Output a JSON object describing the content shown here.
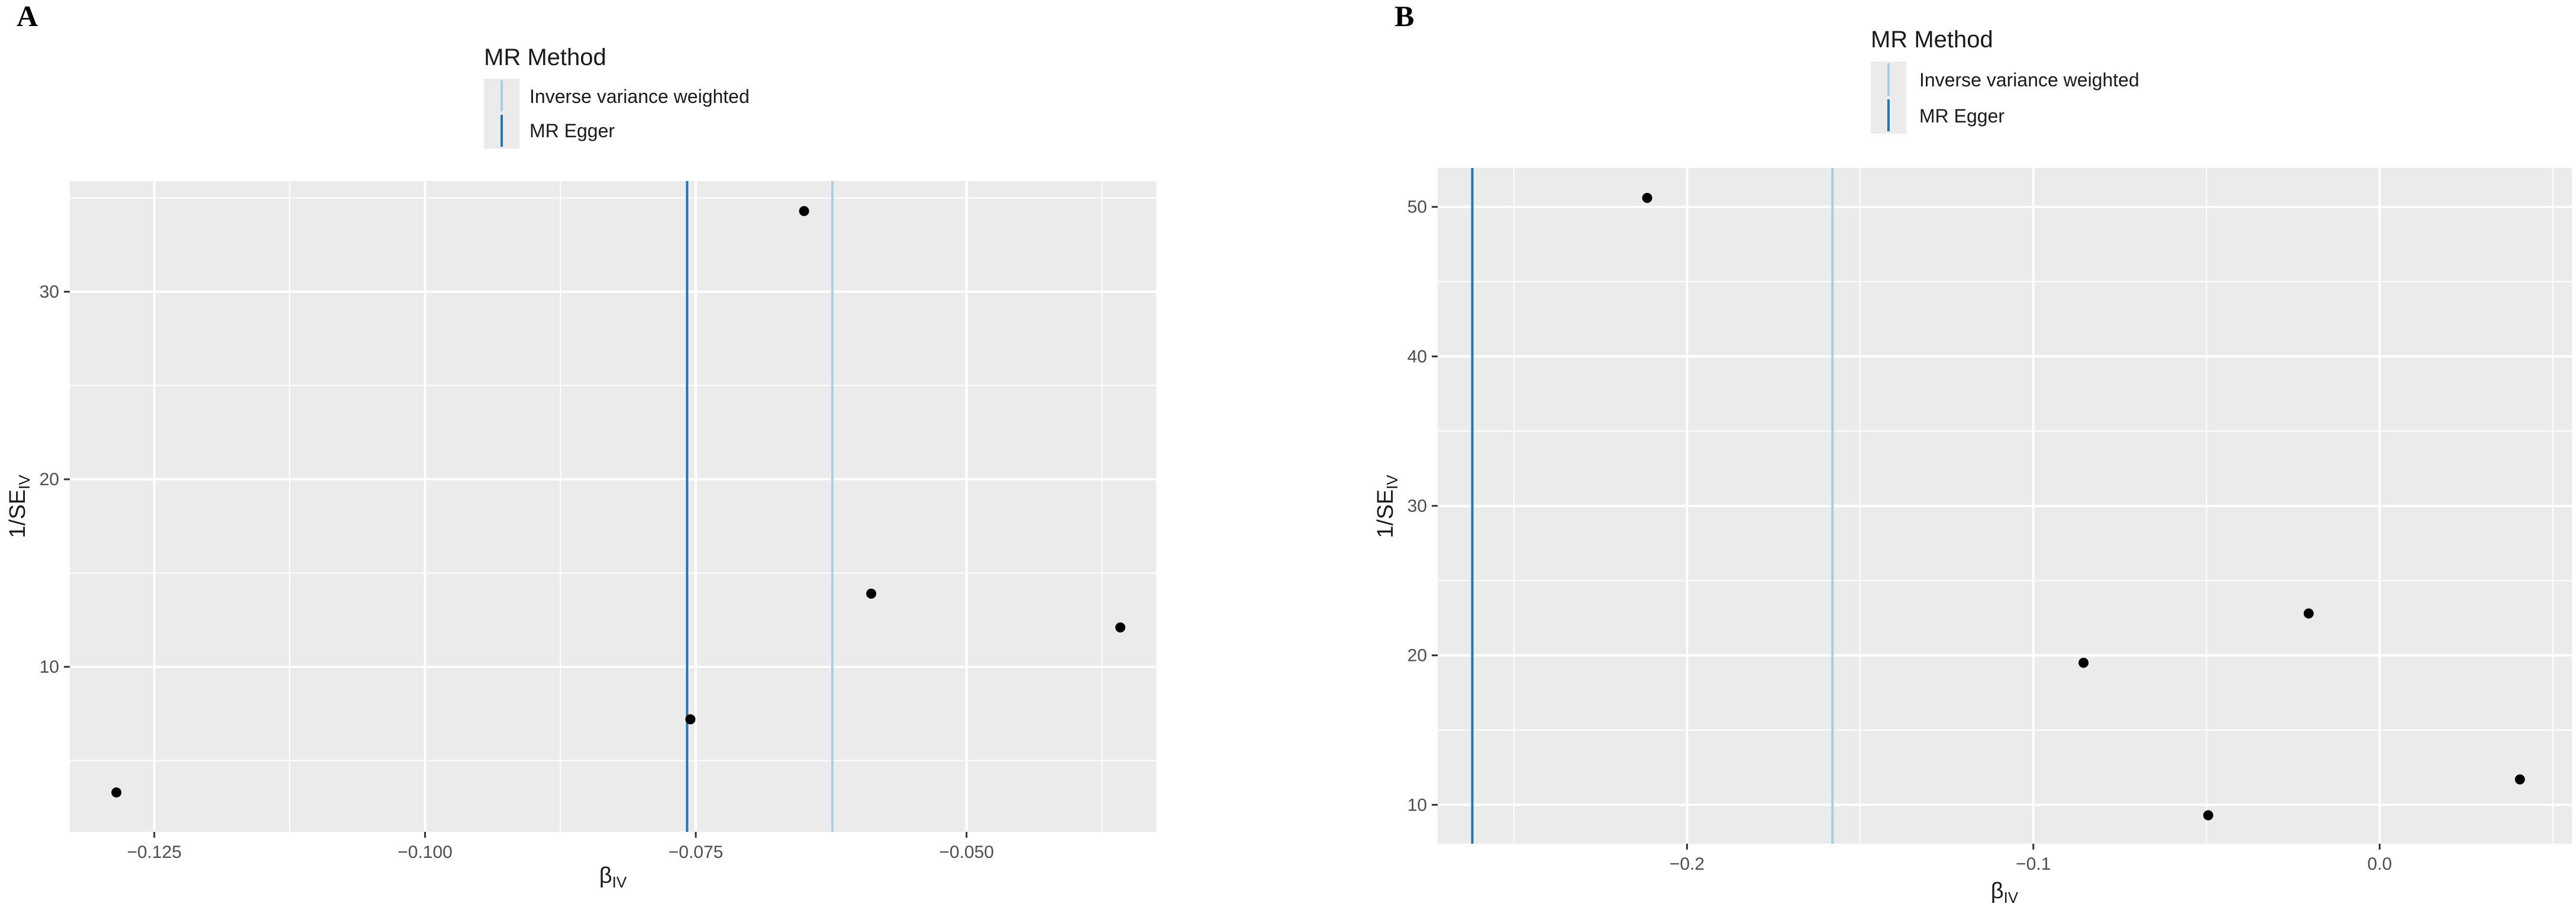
{
  "chart_data": [
    {
      "panel": "A",
      "type": "scatter",
      "title": "",
      "xlabel": "β",
      "xlabel_sub": "IV",
      "ylabel": "1/SE",
      "ylabel_sub": "IV",
      "xlim": [
        -0.1328,
        -0.0325
      ],
      "ylim": [
        1.2,
        35.9
      ],
      "x_ticks": [
        -0.125,
        -0.1,
        -0.075,
        -0.05
      ],
      "x_tick_labels": [
        "−0.125",
        "−0.100",
        "−0.075",
        "−0.050"
      ],
      "y_ticks": [
        10,
        20,
        30
      ],
      "y_tick_labels": [
        "10",
        "20",
        "30"
      ],
      "grid": true,
      "legend": {
        "title": "MR Method",
        "placement": "top",
        "entries": [
          {
            "label": "Inverse variance weighted",
            "color": "#a6cee3"
          },
          {
            "label": "MR Egger",
            "color": "#1f78b4"
          }
        ]
      },
      "points": [
        {
          "x": -0.1285,
          "y": 3.3
        },
        {
          "x": -0.0755,
          "y": 7.2
        },
        {
          "x": -0.065,
          "y": 34.3
        },
        {
          "x": -0.0588,
          "y": 13.9
        },
        {
          "x": -0.0358,
          "y": 12.1
        }
      ],
      "vlines": [
        {
          "method": "MR Egger",
          "x": -0.0758,
          "color": "#1f78b4"
        },
        {
          "method": "Inverse variance weighted",
          "x": -0.0624,
          "color": "#a6cee3"
        }
      ]
    },
    {
      "panel": "B",
      "type": "scatter",
      "title": "",
      "xlabel": "β",
      "xlabel_sub": "IV",
      "ylabel": "1/SE",
      "ylabel_sub": "IV",
      "xlim": [
        -0.272,
        0.0555
      ],
      "ylim": [
        7.4,
        52.6
      ],
      "x_ticks": [
        -0.2,
        -0.1,
        0.0
      ],
      "x_tick_labels": [
        "−0.2",
        "−0.1",
        "0.0"
      ],
      "y_ticks": [
        10,
        20,
        30,
        40,
        50
      ],
      "y_tick_labels": [
        "10",
        "20",
        "30",
        "40",
        "50"
      ],
      "grid": true,
      "legend": {
        "title": "MR Method",
        "placement": "top",
        "entries": [
          {
            "label": "Inverse variance weighted",
            "color": "#a6cee3"
          },
          {
            "label": "MR Egger",
            "color": "#1f78b4"
          }
        ]
      },
      "points": [
        {
          "x": -0.2115,
          "y": 50.6
        },
        {
          "x": -0.0855,
          "y": 19.5
        },
        {
          "x": -0.0495,
          "y": 9.3
        },
        {
          "x": -0.0205,
          "y": 22.8
        },
        {
          "x": 0.0405,
          "y": 11.7
        }
      ],
      "vlines": [
        {
          "method": "MR Egger",
          "x": -0.262,
          "color": "#1f78b4"
        },
        {
          "method": "Inverse variance weighted",
          "x": -0.158,
          "color": "#a6cee3"
        }
      ]
    }
  ]
}
